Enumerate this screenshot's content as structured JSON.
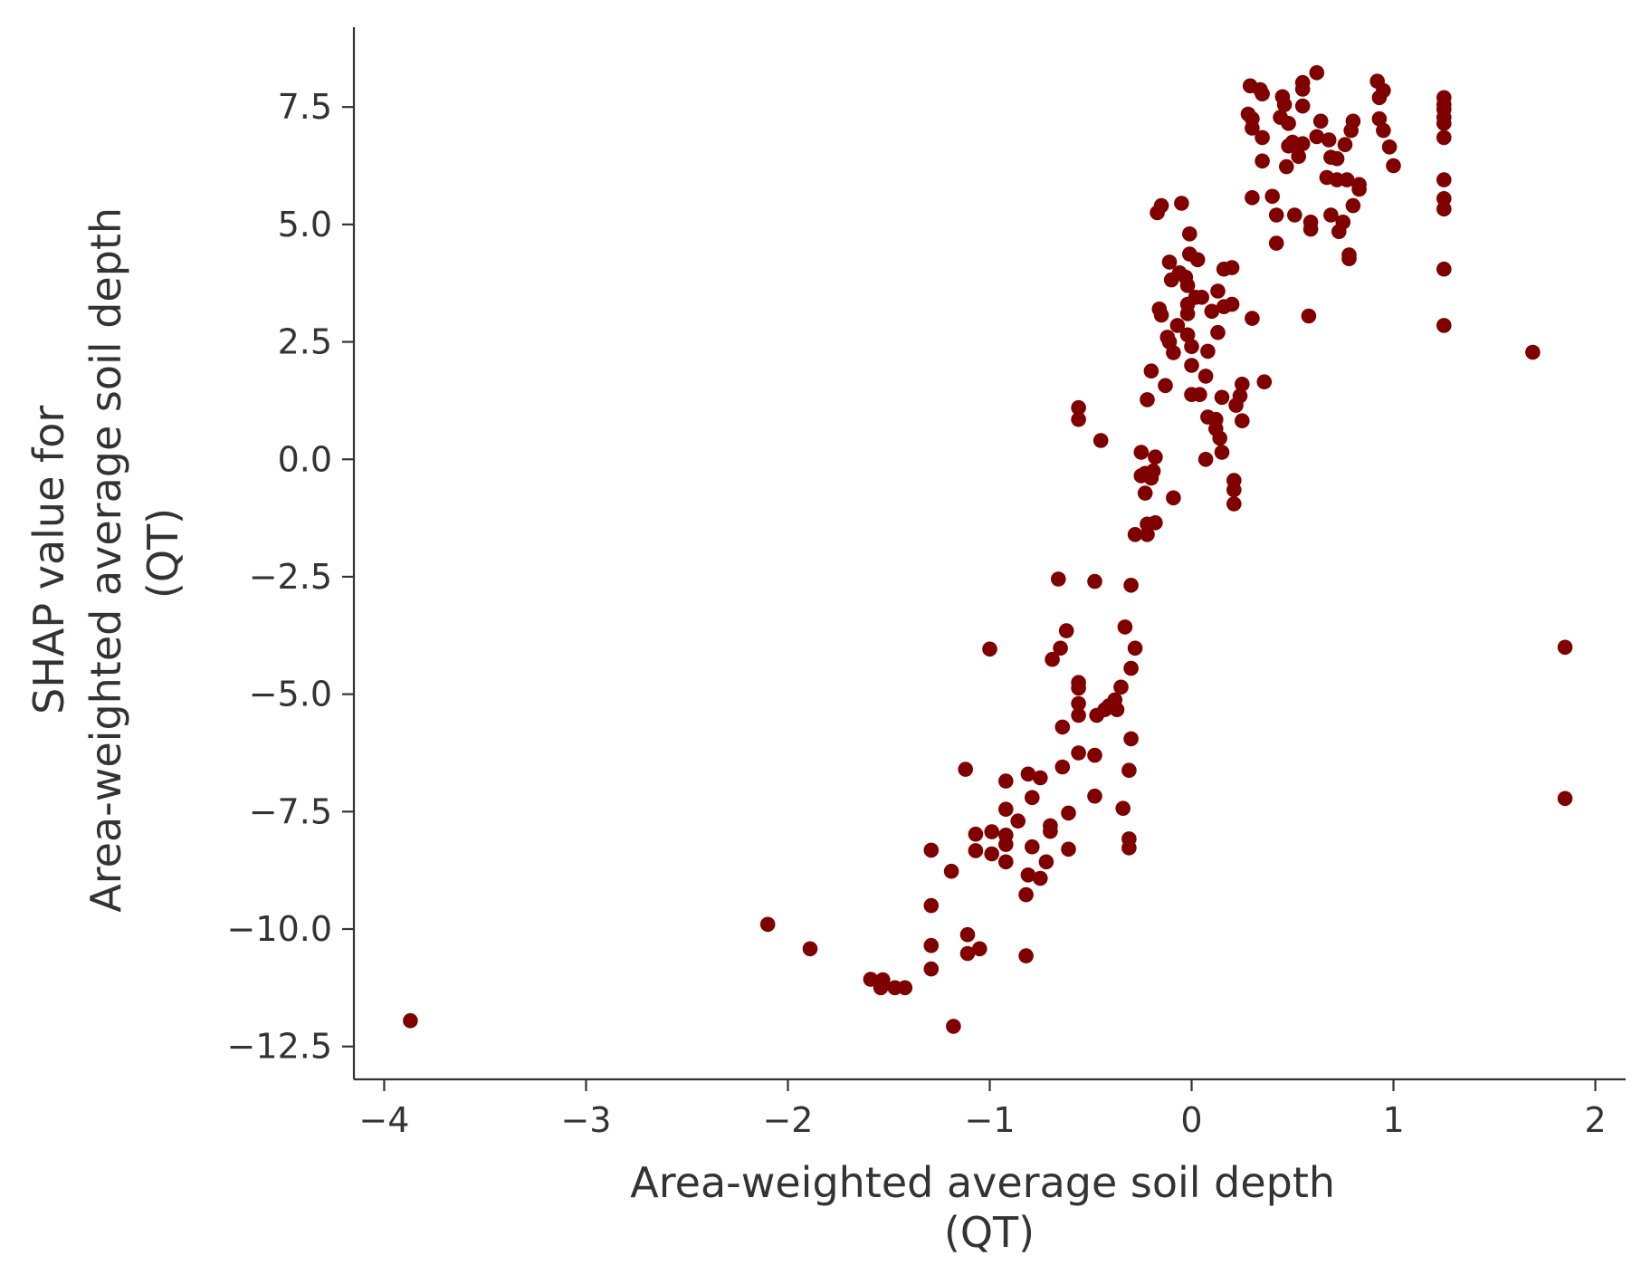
{
  "chart_data": {
    "type": "scatter",
    "xlabel": [
      "Area-weighted average soil depth",
      "(QT)"
    ],
    "ylabel": [
      "SHAP value for",
      "Area-weighted average soil depth",
      "(QT)"
    ],
    "xlim": [
      -4.15,
      2.15
    ],
    "ylim": [
      -13.2,
      9.2
    ],
    "xticks": [
      -4,
      -3,
      -2,
      -1,
      0,
      1,
      2
    ],
    "xtick_labels": [
      "−4",
      "−3",
      "−2",
      "−1",
      "0",
      "1",
      "2"
    ],
    "yticks": [
      -12.5,
      -10.0,
      -7.5,
      -5.0,
      -2.5,
      0.0,
      2.5,
      5.0,
      7.5
    ],
    "ytick_labels": [
      "−12.5",
      "−10.0",
      "−7.5",
      "−5.0",
      "−2.5",
      "0.0",
      "2.5",
      "5.0",
      "7.5"
    ],
    "grid": false,
    "marker_color": "#800000",
    "series": [
      {
        "points": [
          [
            -3.87,
            -11.95
          ],
          [
            -2.1,
            -9.9
          ],
          [
            -1.89,
            -10.42
          ],
          [
            -1.59,
            -11.07
          ],
          [
            -1.54,
            -11.25
          ],
          [
            -1.53,
            -11.08
          ],
          [
            -1.47,
            -11.25
          ],
          [
            -1.42,
            -11.25
          ],
          [
            -1.29,
            -8.32
          ],
          [
            -1.29,
            -9.5
          ],
          [
            -1.29,
            -10.35
          ],
          [
            -1.29,
            -10.85
          ],
          [
            -1.19,
            -8.77
          ],
          [
            -1.18,
            -12.07
          ],
          [
            -1.12,
            -6.6
          ],
          [
            -1.11,
            -10.12
          ],
          [
            -1.11,
            -10.52
          ],
          [
            -1.05,
            -10.42
          ],
          [
            -1.07,
            -7.98
          ],
          [
            -1.07,
            -8.33
          ],
          [
            -1.0,
            -4.04
          ],
          [
            -0.99,
            -7.93
          ],
          [
            -0.99,
            -8.4
          ],
          [
            -0.92,
            -6.85
          ],
          [
            -0.92,
            -7.45
          ],
          [
            -0.92,
            -8.0
          ],
          [
            -0.92,
            -8.2
          ],
          [
            -0.92,
            -8.57
          ],
          [
            -0.86,
            -7.7
          ],
          [
            -0.81,
            -6.7
          ],
          [
            -0.81,
            -8.85
          ],
          [
            -0.82,
            -9.27
          ],
          [
            -0.82,
            -10.57
          ],
          [
            -0.79,
            -7.2
          ],
          [
            -0.79,
            -8.25
          ],
          [
            -0.75,
            -6.78
          ],
          [
            -0.75,
            -8.92
          ],
          [
            -0.72,
            -8.57
          ],
          [
            -0.7,
            -7.8
          ],
          [
            -0.7,
            -7.92
          ],
          [
            -0.69,
            -4.26
          ],
          [
            -0.66,
            -2.55
          ],
          [
            -0.65,
            -4.02
          ],
          [
            -0.64,
            -5.7
          ],
          [
            -0.64,
            -6.55
          ],
          [
            -0.62,
            -3.65
          ],
          [
            -0.61,
            -7.53
          ],
          [
            -0.61,
            -8.3
          ],
          [
            -0.56,
            1.1
          ],
          [
            -0.56,
            0.85
          ],
          [
            -0.56,
            -4.75
          ],
          [
            -0.56,
            -4.87
          ],
          [
            -0.56,
            -5.2
          ],
          [
            -0.56,
            -5.45
          ],
          [
            -0.56,
            -6.25
          ],
          [
            -0.48,
            -2.6
          ],
          [
            -0.48,
            -6.3
          ],
          [
            -0.48,
            -7.17
          ],
          [
            -0.47,
            -5.45
          ],
          [
            -0.45,
            0.4
          ],
          [
            -0.43,
            -5.33
          ],
          [
            -0.41,
            -5.25
          ],
          [
            -0.38,
            -5.12
          ],
          [
            -0.37,
            -5.33
          ],
          [
            -0.35,
            -4.85
          ],
          [
            -0.34,
            -7.43
          ],
          [
            -0.33,
            -3.57
          ],
          [
            -0.31,
            -6.62
          ],
          [
            -0.31,
            -8.08
          ],
          [
            -0.31,
            -8.27
          ],
          [
            -0.3,
            -2.68
          ],
          [
            -0.3,
            -4.45
          ],
          [
            -0.3,
            -5.95
          ],
          [
            -0.28,
            -4.02
          ],
          [
            -0.28,
            -1.6
          ],
          [
            -0.25,
            0.15
          ],
          [
            -0.25,
            -0.35
          ],
          [
            -0.23,
            -0.3
          ],
          [
            -0.23,
            -0.72
          ],
          [
            -0.22,
            1.27
          ],
          [
            -0.22,
            -1.38
          ],
          [
            -0.22,
            -1.6
          ],
          [
            -0.2,
            1.88
          ],
          [
            -0.2,
            -0.4
          ],
          [
            -0.19,
            -0.25
          ],
          [
            -0.18,
            0.05
          ],
          [
            -0.18,
            -1.35
          ],
          [
            -0.17,
            5.25
          ],
          [
            -0.16,
            3.2
          ],
          [
            -0.15,
            3.07
          ],
          [
            -0.15,
            5.4
          ],
          [
            -0.13,
            1.57
          ],
          [
            -0.12,
            2.6
          ],
          [
            -0.11,
            4.2
          ],
          [
            -0.11,
            2.5
          ],
          [
            -0.1,
            3.82
          ],
          [
            -0.09,
            2.27
          ],
          [
            -0.09,
            -0.82
          ],
          [
            -0.07,
            2.85
          ],
          [
            -0.06,
            3.97
          ],
          [
            -0.05,
            5.45
          ],
          [
            -0.03,
            3.88
          ],
          [
            -0.02,
            3.7
          ],
          [
            -0.02,
            3.3
          ],
          [
            -0.02,
            3.1
          ],
          [
            -0.02,
            2.65
          ],
          [
            -0.01,
            4.37
          ],
          [
            -0.01,
            4.8
          ],
          [
            0.0,
            2.4
          ],
          [
            0.0,
            2.0
          ],
          [
            0.0,
            1.38
          ],
          [
            0.02,
            3.45
          ],
          [
            0.03,
            4.25
          ],
          [
            0.04,
            1.38
          ],
          [
            0.05,
            3.45
          ],
          [
            0.07,
            1.77
          ],
          [
            0.07,
            0.0
          ],
          [
            0.08,
            0.9
          ],
          [
            0.08,
            2.3
          ],
          [
            0.1,
            3.15
          ],
          [
            0.12,
            0.65
          ],
          [
            0.12,
            0.85
          ],
          [
            0.13,
            2.7
          ],
          [
            0.13,
            3.58
          ],
          [
            0.14,
            0.45
          ],
          [
            0.15,
            1.32
          ],
          [
            0.15,
            0.15
          ],
          [
            0.16,
            4.05
          ],
          [
            0.16,
            3.25
          ],
          [
            0.2,
            3.3
          ],
          [
            0.2,
            4.08
          ],
          [
            0.21,
            -0.45
          ],
          [
            0.21,
            -0.65
          ],
          [
            0.21,
            -0.95
          ],
          [
            0.22,
            1.15
          ],
          [
            0.24,
            1.35
          ],
          [
            0.25,
            1.6
          ],
          [
            0.25,
            0.82
          ],
          [
            0.28,
            7.35
          ],
          [
            0.29,
            7.95
          ],
          [
            0.3,
            5.57
          ],
          [
            0.3,
            7.25
          ],
          [
            0.3,
            7.05
          ],
          [
            0.3,
            3.0
          ],
          [
            0.34,
            7.87
          ],
          [
            0.35,
            7.78
          ],
          [
            0.35,
            6.85
          ],
          [
            0.35,
            6.35
          ],
          [
            0.36,
            1.65
          ],
          [
            0.4,
            5.6
          ],
          [
            0.42,
            5.2
          ],
          [
            0.42,
            4.6
          ],
          [
            0.44,
            7.28
          ],
          [
            0.45,
            7.72
          ],
          [
            0.46,
            7.55
          ],
          [
            0.47,
            6.23
          ],
          [
            0.48,
            6.67
          ],
          [
            0.48,
            7.15
          ],
          [
            0.5,
            6.75
          ],
          [
            0.51,
            5.2
          ],
          [
            0.52,
            6.65
          ],
          [
            0.53,
            6.45
          ],
          [
            0.55,
            8.02
          ],
          [
            0.55,
            7.88
          ],
          [
            0.55,
            7.52
          ],
          [
            0.55,
            6.72
          ],
          [
            0.58,
            3.05
          ],
          [
            0.59,
            5.05
          ],
          [
            0.59,
            4.9
          ],
          [
            0.62,
            8.23
          ],
          [
            0.62,
            6.87
          ],
          [
            0.64,
            7.2
          ],
          [
            0.67,
            6.0
          ],
          [
            0.68,
            6.8
          ],
          [
            0.69,
            6.43
          ],
          [
            0.69,
            5.2
          ],
          [
            0.72,
            6.4
          ],
          [
            0.72,
            5.95
          ],
          [
            0.73,
            4.85
          ],
          [
            0.75,
            5.05
          ],
          [
            0.76,
            6.7
          ],
          [
            0.77,
            5.95
          ],
          [
            0.78,
            4.35
          ],
          [
            0.78,
            4.27
          ],
          [
            0.79,
            7.0
          ],
          [
            0.8,
            7.2
          ],
          [
            0.8,
            5.4
          ],
          [
            0.83,
            5.85
          ],
          [
            0.83,
            5.75
          ],
          [
            0.92,
            8.05
          ],
          [
            0.93,
            7.7
          ],
          [
            0.93,
            7.25
          ],
          [
            0.95,
            7.85
          ],
          [
            0.95,
            7.0
          ],
          [
            0.98,
            6.65
          ],
          [
            1.0,
            6.25
          ],
          [
            1.25,
            7.7
          ],
          [
            1.25,
            7.55
          ],
          [
            1.25,
            7.45
          ],
          [
            1.25,
            7.28
          ],
          [
            1.25,
            7.15
          ],
          [
            1.25,
            6.85
          ],
          [
            1.25,
            5.95
          ],
          [
            1.25,
            5.55
          ],
          [
            1.25,
            5.33
          ],
          [
            1.25,
            4.05
          ],
          [
            1.25,
            2.85
          ],
          [
            1.69,
            2.28
          ],
          [
            1.85,
            -4.0
          ],
          [
            1.85,
            -7.22
          ]
        ]
      }
    ]
  }
}
